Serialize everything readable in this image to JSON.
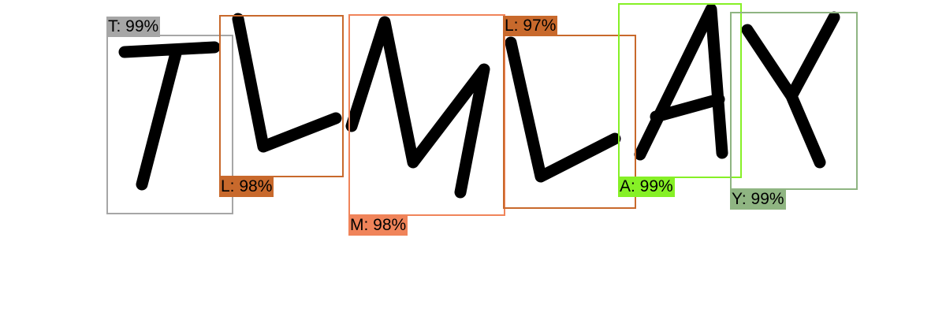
{
  "detections": [
    {
      "char": "T",
      "label": "T: 99%",
      "color": "#a6a6a6"
    },
    {
      "char": "L",
      "label": "L: 98%",
      "color": "#c8692c"
    },
    {
      "char": "M",
      "label": "M: 98%",
      "color": "#f0845a"
    },
    {
      "char": "L",
      "label": "L: 97%",
      "color": "#c8692c"
    },
    {
      "char": "A",
      "label": "A: 99%",
      "color": "#86f026"
    },
    {
      "char": "Y",
      "label": "Y: 99%",
      "color": "#8fb582"
    }
  ]
}
